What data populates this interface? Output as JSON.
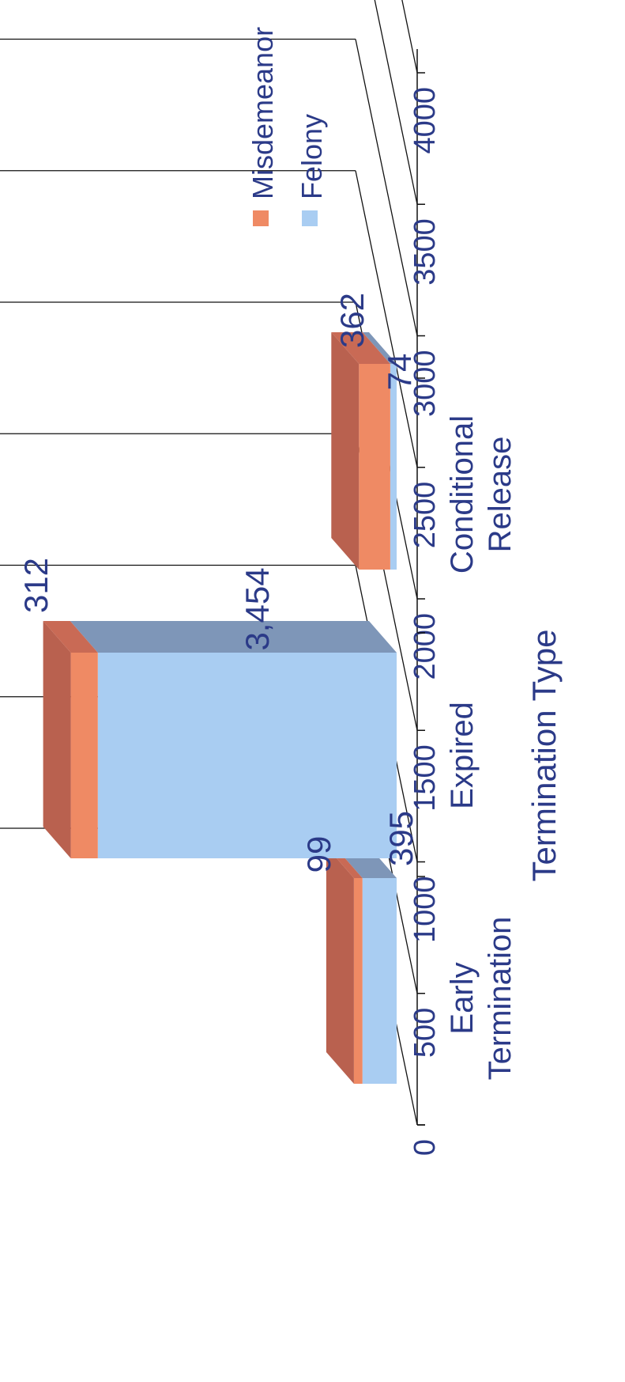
{
  "colors": {
    "misdemeanor_front": "#ef8a64",
    "misdemeanor_top": "#c96a55",
    "misdemeanor_side": "#b9614f",
    "felony_front": "#a9cdf2",
    "felony_top": "#7e96b8",
    "felony_side": "#8fb0d4",
    "text": "#2b3a88",
    "grid": "#111111",
    "axis": "#111111"
  },
  "chart_data": {
    "type": "bar",
    "stacked": true,
    "three_d": true,
    "orientation": "rotated-90",
    "title": "",
    "xlabel": "Termination Type",
    "ylabel": "",
    "categories": [
      [
        "Early",
        "Termination"
      ],
      [
        "Expired"
      ],
      [
        "Conditional",
        "Release"
      ]
    ],
    "series": [
      {
        "name": "Felony",
        "values": [
          395,
          3454,
          74
        ],
        "labels": [
          "395",
          "3,454",
          "74"
        ]
      },
      {
        "name": "Misdemeanor",
        "values": [
          99,
          312,
          362
        ],
        "labels": [
          "99",
          "312",
          "362"
        ]
      }
    ],
    "ylim": [
      0,
      4000
    ],
    "yticks": [
      "0",
      "500",
      "1000",
      "1500",
      "2000",
      "2500",
      "3000",
      "3500",
      "4000"
    ],
    "legend": [
      "Misdemeanor",
      "Felony"
    ],
    "legend_position": "right",
    "grid": true
  }
}
